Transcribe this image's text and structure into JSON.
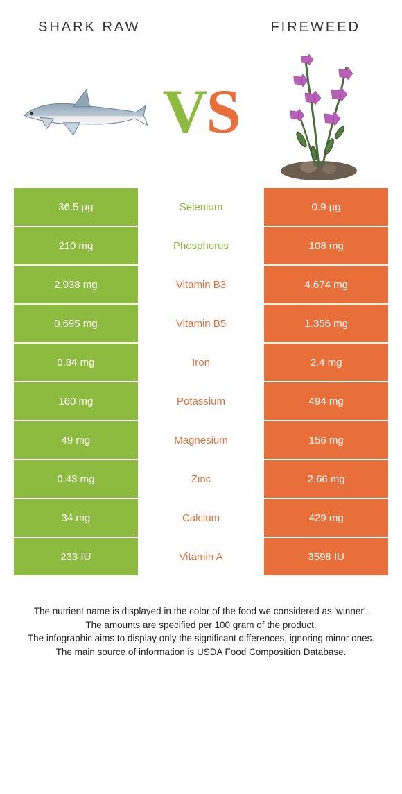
{
  "header": {
    "left_title": "Shark raw",
    "right_title": "Fireweed"
  },
  "colors": {
    "left_bg": "#8DBB3F",
    "right_bg": "#E86F3A",
    "mid_left": "#8DBB3F",
    "mid_right": "#E86F3A",
    "text_on_color": "#ffffff",
    "footer_text": "#222222"
  },
  "vs": {
    "v": "V",
    "s": "S"
  },
  "rows": [
    {
      "nutrient": "Selenium",
      "left": "36.5 µg",
      "right": "0.9 µg",
      "winner": "left"
    },
    {
      "nutrient": "Phosphorus",
      "left": "210 mg",
      "right": "108 mg",
      "winner": "left"
    },
    {
      "nutrient": "Vitamin B3",
      "left": "2.938 mg",
      "right": "4.674 mg",
      "winner": "right"
    },
    {
      "nutrient": "Vitamin B5",
      "left": "0.695 mg",
      "right": "1.356 mg",
      "winner": "right"
    },
    {
      "nutrient": "Iron",
      "left": "0.84 mg",
      "right": "2.4 mg",
      "winner": "right"
    },
    {
      "nutrient": "Potassium",
      "left": "160 mg",
      "right": "494 mg",
      "winner": "right"
    },
    {
      "nutrient": "Magnesium",
      "left": "49 mg",
      "right": "156 mg",
      "winner": "right"
    },
    {
      "nutrient": "Zinc",
      "left": "0.43 mg",
      "right": "2.66 mg",
      "winner": "right"
    },
    {
      "nutrient": "Calcium",
      "left": "34 mg",
      "right": "429 mg",
      "winner": "right"
    },
    {
      "nutrient": "Vitamin A",
      "left": "233 IU",
      "right": "3598 IU",
      "winner": "right"
    }
  ],
  "footer": {
    "line1": "The nutrient name is displayed in the color of the food we considered as 'winner'.",
    "line2": "The amounts are specified per 100 gram of the product.",
    "line3": "The infographic aims to display only the significant differences, ignoring minor ones.",
    "line4": "The main source of information is USDA Food Composition Database."
  }
}
